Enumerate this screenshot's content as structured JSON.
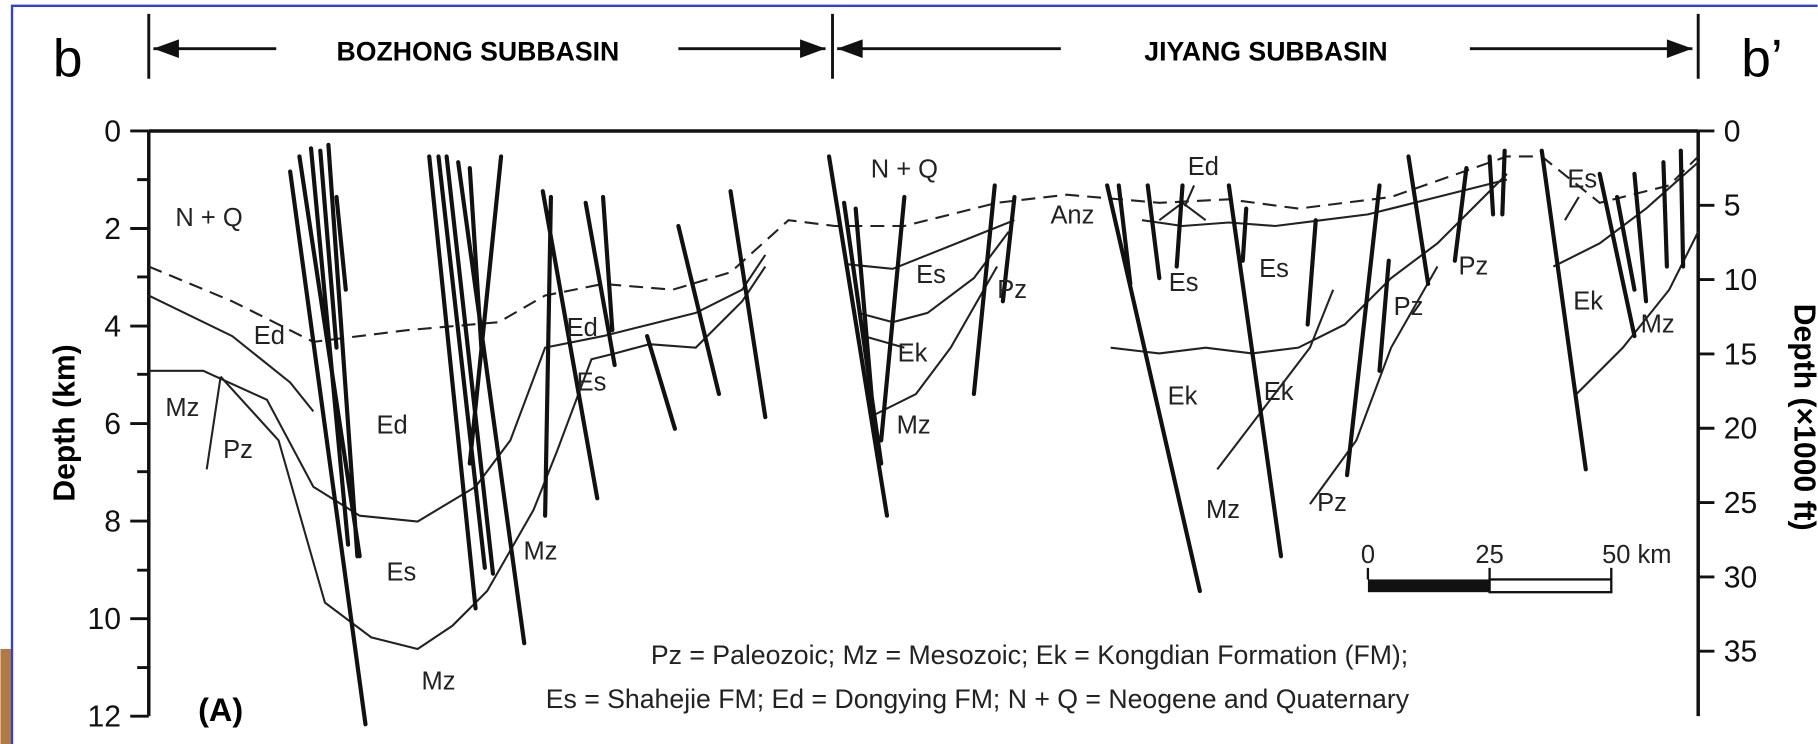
{
  "panel_letters": {
    "left": "b",
    "right": "b’"
  },
  "header": {
    "left_basin": "BOZHONG SUBBASIN",
    "right_basin": "JIYANG SUBBASIN"
  },
  "left_axis": {
    "title": "Depth (km)",
    "ticks": [
      0,
      2,
      4,
      6,
      8,
      10,
      12
    ]
  },
  "right_axis": {
    "title": "Depth (×1000 ft)",
    "ticks": [
      0,
      5,
      10,
      15,
      20,
      25,
      30,
      35
    ]
  },
  "labels": [
    "N + Q",
    "Ed",
    "Mz",
    "Pz",
    "Ed",
    "Es",
    "Mz",
    "Mz",
    "Ed",
    "Es",
    "N + Q",
    "Es",
    "Ek",
    "Mz",
    "Pz",
    "Anz",
    "Ed",
    "Es",
    "Es",
    "Pz",
    "Pz",
    "Ek",
    "Ek",
    "Mz",
    "Pz",
    "Es",
    "Ek",
    "Mz"
  ],
  "scale_bar": {
    "labels": [
      "0",
      "25",
      "50 km"
    ]
  },
  "legend": [
    "Pz = Paleozoic; Mz = Mesozoic; Ek = Kongdian Formation (FM);",
    "Es = Shahejie FM; Ed = Dongying FM; N + Q = Neogene and Quaternary"
  ],
  "panel_label": "(A)"
}
